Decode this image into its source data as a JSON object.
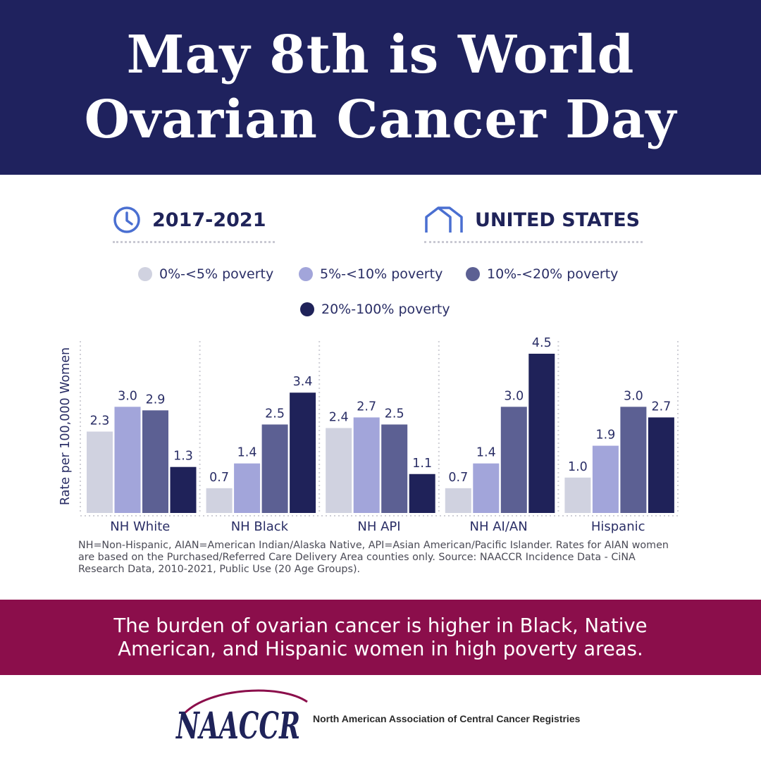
{
  "header": {
    "title_line1": "May 8th is World",
    "title_line2": "Ovarian Cancer Day"
  },
  "meta": {
    "period_icon": "clock-icon",
    "period": "2017-2021",
    "geo_icon": "house-icon",
    "geography": "UNITED STATES"
  },
  "colors": {
    "header_bg": "#1f225e",
    "banner_bg": "#8b0e4b",
    "accent_icon": "#4a6fd1"
  },
  "chart_data": {
    "type": "bar",
    "ylabel": "Rate per 100,000 Women",
    "categories": [
      "NH White",
      "NH Black",
      "NH API",
      "NH AI/AN",
      "Hispanic"
    ],
    "ylim": [
      0,
      4.5
    ],
    "grid": false,
    "legend": "top",
    "series": [
      {
        "name": "0%-<5% poverty",
        "color": "#d0d2e0",
        "values": [
          2.3,
          0.7,
          2.4,
          0.7,
          1.0
        ],
        "labels": [
          "2.3",
          "0.7",
          "2.4",
          "0.7",
          "1.0"
        ]
      },
      {
        "name": "5%-<10% poverty",
        "color": "#a2a5da",
        "values": [
          3.0,
          1.4,
          2.7,
          1.4,
          1.9
        ],
        "labels": [
          "3.0",
          "1.4",
          "2.7",
          "1.4",
          "1.9"
        ]
      },
      {
        "name": "10%-<20% poverty",
        "color": "#5c6093",
        "values": [
          2.9,
          2.5,
          2.5,
          3.0,
          3.0
        ],
        "labels": [
          "2.9",
          "2.5",
          "2.5",
          "3.0",
          "3.0"
        ]
      },
      {
        "name": "20%-100% poverty",
        "color": "#1f2259",
        "values": [
          1.3,
          3.4,
          1.1,
          4.5,
          2.7
        ],
        "labels": [
          "1.3",
          "3.4",
          "1.1",
          "4.5",
          "2.7"
        ]
      }
    ]
  },
  "footnote": "NH=Non-Hispanic, AIAN=American Indian/Alaska Native, API=Asian American/Pacific Islander. Rates for AIAN women are based on the Purchased/Referred Care Delivery Area counties only. Source: NAACCR Incidence Data - CiNA Research Data, 2010-2021, Public Use (20 Age Groups).",
  "banner": {
    "line1": "The burden of ovarian cancer is higher in Black, Native",
    "line2": "American, and Hispanic women in high poverty areas."
  },
  "footer": {
    "logo_text": "NAACCR",
    "org_name": "North American Association of Central Cancer Registries"
  }
}
